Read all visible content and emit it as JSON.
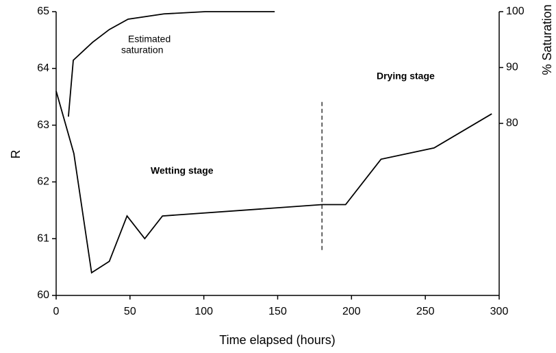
{
  "chart_data": {
    "type": "line",
    "x_label": "Time elapsed (hours)",
    "y_label": "R",
    "y2_label": "% Saturation",
    "xlim": [
      0,
      300
    ],
    "xticks": [
      0,
      50,
      100,
      150,
      200,
      250,
      300
    ],
    "ylim": [
      60,
      65
    ],
    "yticks": [
      60,
      61,
      62,
      63,
      64,
      65
    ],
    "y2lim": [
      49.2,
      100
    ],
    "y2ticks": [
      80,
      90,
      100
    ],
    "series": [
      {
        "name": "R",
        "color": "#000000",
        "x": [
          0,
          12,
          24,
          36,
          48,
          60,
          72,
          180,
          196,
          220,
          256,
          295
        ],
        "values": [
          63.6,
          62.5,
          60.4,
          60.6,
          61.4,
          61.0,
          61.4,
          61.6,
          61.6,
          62.4,
          62.6,
          63.2
        ]
      },
      {
        "name": "Estimated saturation",
        "color": "#000000",
        "axis": "y2",
        "x": [
          8.3,
          11.6,
          24.6,
          36,
          48.7,
          73,
          101,
          148
        ],
        "values": [
          81.2,
          91.3,
          94.5,
          96.8,
          98.65,
          99.6,
          100,
          100
        ]
      }
    ],
    "vline": {
      "x": 180,
      "y": [
        60.8,
        63.45
      ]
    },
    "annotations": [
      "Estimated",
      "saturation",
      "Wetting stage",
      "Drying stage"
    ]
  }
}
